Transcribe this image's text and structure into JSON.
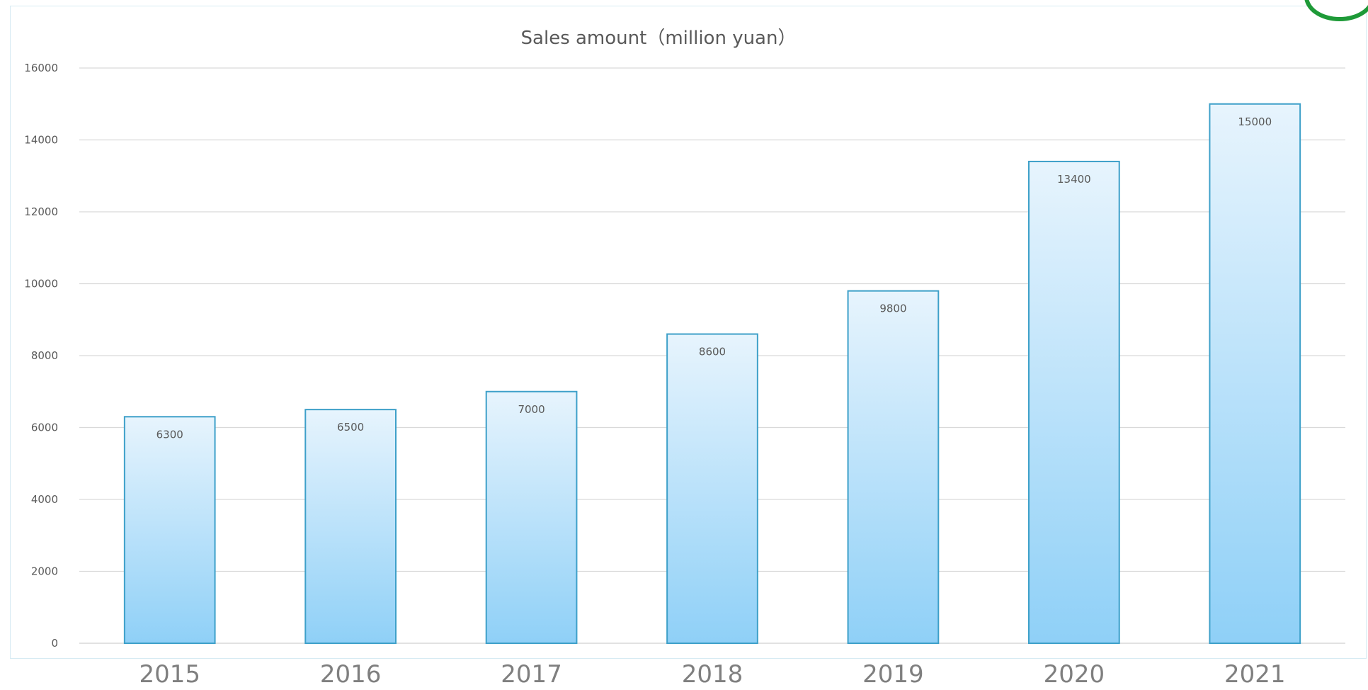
{
  "chart_data": {
    "type": "bar",
    "title": "Sales amount（million yuan）",
    "categories": [
      "2015",
      "2016",
      "2017",
      "2018",
      "2019",
      "2020",
      "2021"
    ],
    "values": [
      6300,
      6500,
      7000,
      8600,
      9800,
      13400,
      15000
    ],
    "data_labels": [
      "6300",
      "6500",
      "7000",
      "8600",
      "9800",
      "13400",
      "15000"
    ],
    "y_ticks": [
      "0",
      "2000",
      "4000",
      "6000",
      "8000",
      "10000",
      "12000",
      "14000",
      "16000"
    ],
    "ylim": [
      0,
      16000
    ],
    "xlabel": "",
    "ylabel": "",
    "grid": true,
    "legend": "none",
    "colors": {
      "bar_top": "#e7f4fd",
      "bar_bottom": "#8fd0f7",
      "bar_outline": "#3ea0c9",
      "gridline": "#d9d9d9",
      "corner_ring": "#1e9a38"
    }
  }
}
